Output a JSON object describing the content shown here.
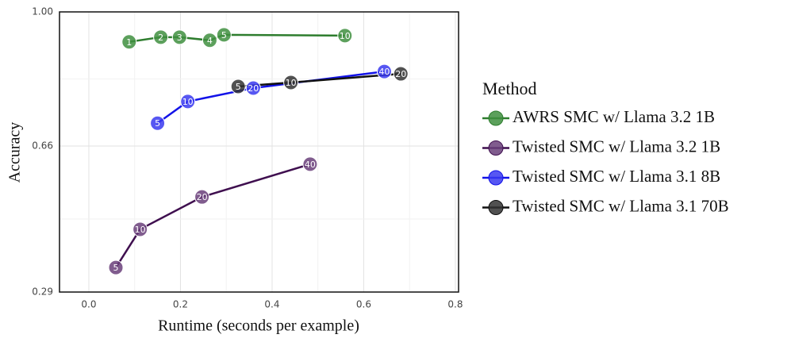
{
  "chart_data": {
    "type": "line",
    "x_label": "Runtime (seconds per example)",
    "y_label": "Accuracy",
    "legend_title": "Method",
    "legend_position": "right",
    "grid": true,
    "xlim": [
      -0.064,
      0.807
    ],
    "ylim": [
      0.29,
      1.0
    ],
    "xticks": [
      {
        "value": 0,
        "label": "0.0"
      },
      0.2,
      0.4,
      0.6,
      0.8
    ],
    "yticks": [
      0.29,
      0.66,
      {
        "value": 1,
        "label": "1.00"
      }
    ],
    "series": [
      {
        "name": "AWRS SMC w/ Llama 3.2 1B",
        "color": "#2e7d2e",
        "marker_color": "#3f8f3f",
        "x": [
          0.088,
          0.157,
          0.198,
          0.264,
          0.295,
          0.559
        ],
        "values": [
          0.924,
          0.936,
          0.936,
          0.928,
          0.942,
          0.94
        ],
        "particles": [
          1,
          2,
          3,
          4,
          5,
          10
        ]
      },
      {
        "name": "Twisted SMC w/ Llama 3.2 1B",
        "color": "#3f0f4f",
        "marker_color": "#6a3f7a",
        "x": [
          0.059,
          0.112,
          0.247,
          0.483
        ],
        "values": [
          0.352,
          0.449,
          0.531,
          0.614
        ],
        "particles": [
          5,
          10,
          20,
          40
        ]
      },
      {
        "name": "Twisted SMC w/ Llama 3.1 8B",
        "color": "#1212e8",
        "marker_color": "#3a3af0",
        "x": [
          0.15,
          0.216,
          0.359,
          0.645
        ],
        "values": [
          0.718,
          0.773,
          0.807,
          0.849
        ],
        "particles": [
          5,
          10,
          20,
          40
        ]
      },
      {
        "name": "Twisted SMC w/ Llama 3.1 70B",
        "color": "#111111",
        "marker_color": "#333333",
        "x": [
          0.326,
          0.441,
          0.681
        ],
        "values": [
          0.811,
          0.821,
          0.843
        ],
        "particles": [
          5,
          10,
          20
        ]
      }
    ]
  }
}
